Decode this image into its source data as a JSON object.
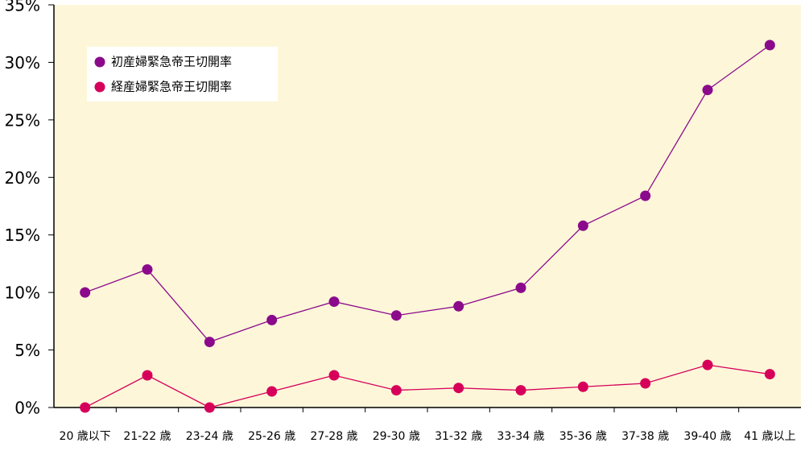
{
  "chart_data": {
    "type": "line",
    "categories": [
      "20 歳以下",
      "21-22 歳",
      "23-24 歳",
      "25-26 歳",
      "27-28 歳",
      "29-30 歳",
      "31-32 歳",
      "33-34 歳",
      "35-36 歳",
      "37-38 歳",
      "39-40 歳",
      "41 歳以上"
    ],
    "series": [
      {
        "name": "初産婦緊急帝王切開率",
        "color": "#8b0a8b",
        "values": [
          10.0,
          12.0,
          5.7,
          7.6,
          9.2,
          8.0,
          8.8,
          10.4,
          15.8,
          18.4,
          27.6,
          31.5
        ]
      },
      {
        "name": "経産婦緊急帝王切開率",
        "color": "#d6005a",
        "values": [
          0.0,
          2.8,
          0.0,
          1.4,
          2.8,
          1.5,
          1.7,
          1.5,
          1.8,
          2.1,
          3.7,
          2.9
        ]
      }
    ],
    "ylim": [
      0,
      35
    ],
    "yticks": [
      {
        "value": 0,
        "label": "0%"
      },
      {
        "value": 5,
        "label": "5%"
      },
      {
        "value": 10,
        "label": "10%"
      },
      {
        "value": 15,
        "label": "15%"
      },
      {
        "value": 20,
        "label": "20%"
      },
      {
        "value": 25,
        "label": "25%"
      },
      {
        "value": 30,
        "label": "30%"
      },
      {
        "value": 35,
        "label": "35%"
      }
    ],
    "legend": "upper left"
  }
}
